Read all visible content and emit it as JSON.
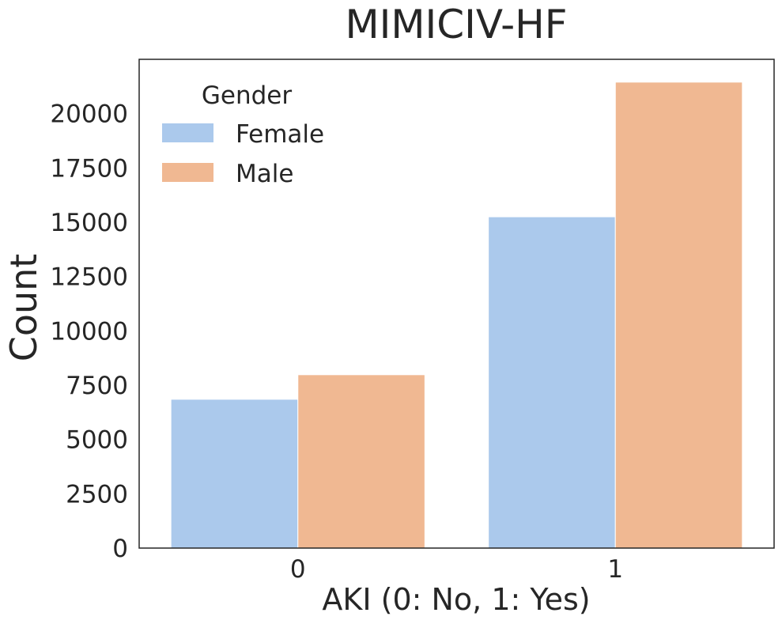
{
  "chart_data": {
    "type": "bar",
    "title": "MIMICIV-HF",
    "xlabel": "AKI (0: No, 1: Yes)",
    "ylabel": "Count",
    "categories": [
      "0",
      "1"
    ],
    "series": [
      {
        "name": "Female",
        "values": [
          6850,
          15250
        ],
        "color": "#abc9ec"
      },
      {
        "name": "Male",
        "values": [
          7980,
          21450
        ],
        "color": "#f0b892"
      }
    ],
    "ylim": [
      0,
      22500
    ],
    "yticks": [
      0,
      2500,
      5000,
      7500,
      10000,
      12500,
      15000,
      17500,
      20000
    ],
    "grid": false,
    "legend": {
      "title": "Gender",
      "placement": "top-left"
    }
  }
}
